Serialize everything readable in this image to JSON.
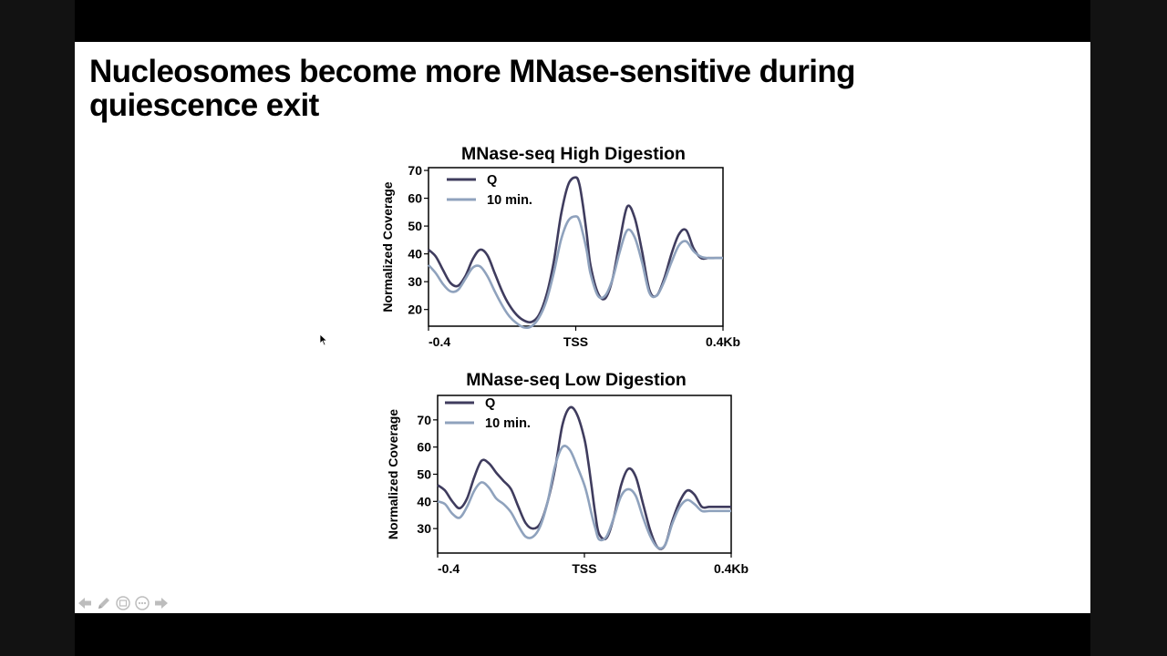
{
  "slide": {
    "title_lines": [
      "Nucleosomes become more MNase-sensitive during",
      "quiescence exit"
    ]
  },
  "colors": {
    "Q": "#3f3c5e",
    "10 min.": "#8fa2bd",
    "axes": "#000000",
    "background": "#ffffff"
  },
  "chart_data": [
    {
      "type": "line",
      "title": "MNase-seq High Digestion",
      "ylabel": "Normalized Coverage",
      "xlabel": "",
      "x_tick_labels": [
        "-0.4",
        "TSS",
        "0.4Kb"
      ],
      "x_ticks": [
        -0.4,
        0,
        0.4
      ],
      "xlim": [
        -0.4,
        0.4
      ],
      "ylim": [
        14,
        71
      ],
      "y_ticks": [
        20,
        30,
        40,
        50,
        60,
        70
      ],
      "legend_position": "top-left",
      "grid": false,
      "series": [
        {
          "name": "Q",
          "x": [
            -0.4,
            -0.38,
            -0.36,
            -0.34,
            -0.32,
            -0.3,
            -0.28,
            -0.26,
            -0.24,
            -0.22,
            -0.2,
            -0.18,
            -0.16,
            -0.14,
            -0.12,
            -0.1,
            -0.08,
            -0.06,
            -0.04,
            -0.02,
            0.0,
            0.01,
            0.02,
            0.03,
            0.04,
            0.06,
            0.08,
            0.1,
            0.12,
            0.14,
            0.16,
            0.18,
            0.2,
            0.22,
            0.24,
            0.26,
            0.28,
            0.3,
            0.32,
            0.34,
            0.36,
            0.38,
            0.4
          ],
          "y": [
            41.5,
            39,
            34,
            29.5,
            28.5,
            32,
            38,
            41.5,
            39.5,
            33,
            26.5,
            21.5,
            18,
            16,
            15.5,
            18,
            25,
            37,
            54,
            65,
            67.5,
            65,
            57,
            47,
            36,
            26,
            24,
            31,
            45,
            57,
            53,
            41,
            27,
            25,
            31,
            40,
            47,
            48.5,
            42,
            38.5,
            38.5,
            38.5,
            38.5
          ]
        },
        {
          "name": "10 min.",
          "x": [
            -0.4,
            -0.38,
            -0.36,
            -0.34,
            -0.32,
            -0.3,
            -0.28,
            -0.26,
            -0.24,
            -0.22,
            -0.2,
            -0.18,
            -0.16,
            -0.14,
            -0.12,
            -0.1,
            -0.08,
            -0.06,
            -0.04,
            -0.02,
            0.0,
            0.01,
            0.02,
            0.03,
            0.04,
            0.06,
            0.08,
            0.1,
            0.12,
            0.14,
            0.16,
            0.18,
            0.2,
            0.22,
            0.24,
            0.26,
            0.28,
            0.3,
            0.32,
            0.34,
            0.36,
            0.38,
            0.4
          ],
          "y": [
            36,
            33,
            29,
            26.5,
            27,
            31,
            35,
            35.5,
            32,
            26.5,
            21.5,
            17.5,
            15,
            13.5,
            14,
            17,
            23,
            33,
            45,
            52,
            53.5,
            52,
            47,
            41,
            33,
            25,
            25,
            31,
            41,
            48.5,
            46,
            37,
            26,
            25,
            30,
            37,
            43,
            44.5,
            41,
            39,
            38.5,
            38.5,
            38.5
          ]
        }
      ]
    },
    {
      "type": "line",
      "title": "MNase-seq Low Digestion",
      "ylabel": "Normalized Coverage",
      "xlabel": "",
      "x_tick_labels": [
        "-0.4",
        "TSS",
        "0.4Kb"
      ],
      "x_ticks": [
        -0.4,
        0,
        0.4
      ],
      "xlim": [
        -0.4,
        0.4
      ],
      "ylim": [
        21,
        79
      ],
      "y_ticks": [
        30,
        40,
        50,
        60,
        70
      ],
      "legend_position": "top-left",
      "grid": false,
      "series": [
        {
          "name": "Q",
          "x": [
            -0.4,
            -0.38,
            -0.36,
            -0.34,
            -0.32,
            -0.3,
            -0.28,
            -0.26,
            -0.24,
            -0.22,
            -0.2,
            -0.18,
            -0.16,
            -0.14,
            -0.12,
            -0.1,
            -0.08,
            -0.06,
            -0.04,
            -0.02,
            0.0,
            0.01,
            0.02,
            0.03,
            0.04,
            0.06,
            0.08,
            0.1,
            0.12,
            0.14,
            0.16,
            0.18,
            0.2,
            0.22,
            0.24,
            0.26,
            0.28,
            0.3,
            0.32,
            0.34,
            0.36,
            0.38,
            0.4
          ],
          "y": [
            46,
            44,
            40,
            37.5,
            41,
            49,
            55,
            54,
            50.5,
            47.5,
            44.5,
            38,
            32,
            30,
            32,
            40,
            52,
            68,
            74.5,
            72,
            63,
            55,
            45,
            35,
            28,
            26.5,
            34,
            46,
            52,
            49,
            39,
            29,
            23,
            24,
            33,
            40,
            44,
            42.5,
            38,
            38,
            38,
            38,
            38
          ]
        },
        {
          "name": "10 min.",
          "x": [
            -0.4,
            -0.38,
            -0.36,
            -0.34,
            -0.32,
            -0.3,
            -0.28,
            -0.26,
            -0.24,
            -0.22,
            -0.2,
            -0.18,
            -0.16,
            -0.14,
            -0.12,
            -0.1,
            -0.08,
            -0.06,
            -0.04,
            -0.02,
            0.0,
            0.01,
            0.02,
            0.03,
            0.04,
            0.06,
            0.08,
            0.1,
            0.12,
            0.14,
            0.16,
            0.18,
            0.2,
            0.22,
            0.24,
            0.26,
            0.28,
            0.3,
            0.32,
            0.34,
            0.36,
            0.38,
            0.4
          ],
          "y": [
            40,
            39,
            35.5,
            34,
            38,
            44,
            47,
            45,
            41,
            39,
            36,
            31,
            27,
            27,
            31,
            40,
            53,
            60,
            59,
            53,
            46,
            41,
            35,
            30,
            26,
            27,
            34,
            42,
            44.5,
            42,
            34,
            27,
            23,
            24,
            32,
            38,
            40.5,
            39,
            36.5,
            36.5,
            36.5,
            36.5,
            36.5
          ]
        }
      ]
    }
  ],
  "icons": [
    "arrow-left-icon",
    "pen-icon",
    "slides-grid-icon",
    "more-options-icon",
    "arrow-right-icon"
  ]
}
